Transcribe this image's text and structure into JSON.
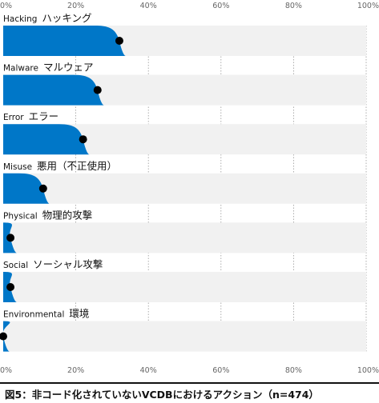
{
  "chart_data": {
    "type": "area",
    "x_ticks": [
      "0%",
      "20%",
      "40%",
      "60%",
      "80%",
      "100%"
    ],
    "xlim": [
      0,
      100
    ],
    "grid": true,
    "color": "#0077c8",
    "categories": [
      {
        "en": "Hacking",
        "ja": "ハッキング",
        "value": 32
      },
      {
        "en": "Malware",
        "ja": "マルウェア",
        "value": 26
      },
      {
        "en": "Error",
        "ja": "エラー",
        "value": 22
      },
      {
        "en": "Misuse",
        "ja": "悪用（不正使用）",
        "value": 11
      },
      {
        "en": "Physical",
        "ja": "物理的攻撃",
        "value": 2
      },
      {
        "en": "Social",
        "ja": "ソーシャル攻撃",
        "value": 2
      },
      {
        "en": "Environmental",
        "ja": "環境",
        "value": 0
      }
    ]
  },
  "caption": "図5：非コード化されていないVCDBにおけるアクション（n=474）"
}
